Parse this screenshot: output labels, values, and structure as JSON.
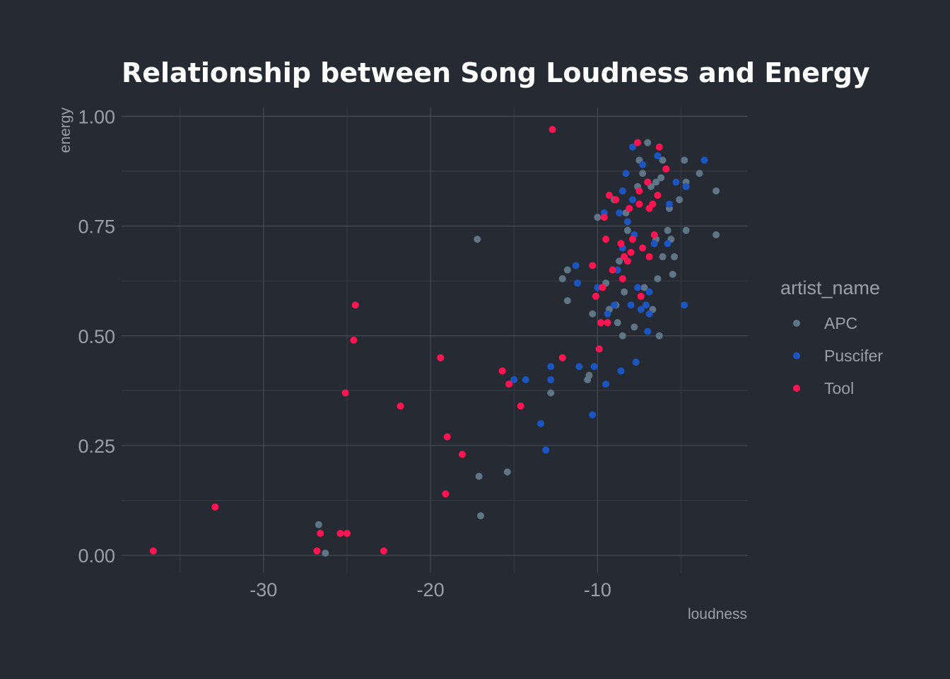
{
  "chart_data": {
    "type": "scatter",
    "title": "Relationship between Song Loudness and Energy",
    "xlabel": "loudness",
    "ylabel": "energy",
    "xlim": [
      -38.5,
      -1
    ],
    "ylim": [
      -0.04,
      1.02
    ],
    "x_ticks": [
      -30,
      -20,
      -10
    ],
    "x_tick_labels": [
      "-30",
      "-20",
      "-10"
    ],
    "y_ticks": [
      0,
      0.25,
      0.5,
      0.75,
      1
    ],
    "y_tick_labels": [
      "0.00",
      "0.25",
      "0.50",
      "0.75",
      "1.00"
    ],
    "grid": true,
    "legend": {
      "title": "artist_name",
      "placement": "right"
    },
    "series": [
      {
        "name": "APC",
        "color": "#5f7585",
        "points": [
          [
            -26.7,
            0.07
          ],
          [
            -26.3,
            0.005
          ],
          [
            -17.2,
            0.72
          ],
          [
            -17.1,
            0.18
          ],
          [
            -17.0,
            0.09
          ],
          [
            -15.4,
            0.19
          ],
          [
            -12.8,
            0.37
          ],
          [
            -12.1,
            0.63
          ],
          [
            -11.8,
            0.65
          ],
          [
            -11.8,
            0.58
          ],
          [
            -10.6,
            0.4
          ],
          [
            -10.5,
            0.41
          ],
          [
            -10.3,
            0.55
          ],
          [
            -10.0,
            0.77
          ],
          [
            -9.5,
            0.62
          ],
          [
            -9.3,
            0.56
          ],
          [
            -9.0,
            0.81
          ],
          [
            -8.9,
            0.57
          ],
          [
            -8.8,
            0.53
          ],
          [
            -8.7,
            0.67
          ],
          [
            -8.5,
            0.5
          ],
          [
            -8.4,
            0.6
          ],
          [
            -8.3,
            0.78
          ],
          [
            -8.2,
            0.74
          ],
          [
            -7.8,
            0.52
          ],
          [
            -7.6,
            0.84
          ],
          [
            -7.5,
            0.9
          ],
          [
            -7.3,
            0.87
          ],
          [
            -7.2,
            0.61
          ],
          [
            -7.0,
            0.94
          ],
          [
            -6.8,
            0.84
          ],
          [
            -6.7,
            0.56
          ],
          [
            -6.5,
            0.72
          ],
          [
            -6.5,
            0.85
          ],
          [
            -6.4,
            0.63
          ],
          [
            -6.3,
            0.5
          ],
          [
            -6.2,
            0.86
          ],
          [
            -6.1,
            0.68
          ],
          [
            -6.1,
            0.9
          ],
          [
            -5.8,
            0.74
          ],
          [
            -5.7,
            0.79
          ],
          [
            -5.6,
            0.72
          ],
          [
            -5.5,
            0.64
          ],
          [
            -5.4,
            0.68
          ],
          [
            -5.1,
            0.81
          ],
          [
            -4.8,
            0.9
          ],
          [
            -4.7,
            0.74
          ],
          [
            -4.7,
            0.85
          ],
          [
            -3.9,
            0.87
          ],
          [
            -2.9,
            0.83
          ],
          [
            -2.9,
            0.73
          ]
        ]
      },
      {
        "name": "Puscifer",
        "color": "#1d55c0",
        "points": [
          [
            -15.0,
            0.4
          ],
          [
            -14.3,
            0.4
          ],
          [
            -13.4,
            0.3
          ],
          [
            -13.1,
            0.24
          ],
          [
            -12.8,
            0.4
          ],
          [
            -12.8,
            0.43
          ],
          [
            -11.3,
            0.66
          ],
          [
            -11.2,
            0.62
          ],
          [
            -11.1,
            0.43
          ],
          [
            -10.3,
            0.32
          ],
          [
            -10.2,
            0.43
          ],
          [
            -10.0,
            0.61
          ],
          [
            -9.6,
            0.78
          ],
          [
            -9.5,
            0.39
          ],
          [
            -9.4,
            0.55
          ],
          [
            -9.0,
            0.57
          ],
          [
            -8.8,
            0.65
          ],
          [
            -8.7,
            0.78
          ],
          [
            -8.6,
            0.42
          ],
          [
            -8.5,
            0.7
          ],
          [
            -8.5,
            0.83
          ],
          [
            -8.3,
            0.87
          ],
          [
            -8.2,
            0.76
          ],
          [
            -8.0,
            0.57
          ],
          [
            -7.9,
            0.81
          ],
          [
            -7.9,
            0.93
          ],
          [
            -7.8,
            0.73
          ],
          [
            -7.7,
            0.44
          ],
          [
            -7.6,
            0.61
          ],
          [
            -7.4,
            0.56
          ],
          [
            -7.3,
            0.89
          ],
          [
            -7.1,
            0.57
          ],
          [
            -7.0,
            0.51
          ],
          [
            -6.9,
            0.55
          ],
          [
            -6.9,
            0.6
          ],
          [
            -6.6,
            0.71
          ],
          [
            -6.4,
            0.91
          ],
          [
            -5.8,
            0.71
          ],
          [
            -5.7,
            0.8
          ],
          [
            -5.3,
            0.85
          ],
          [
            -4.8,
            0.57
          ],
          [
            -4.7,
            0.84
          ],
          [
            -3.6,
            0.9
          ]
        ]
      },
      {
        "name": "Tool",
        "color": "#ff1452",
        "points": [
          [
            -36.6,
            0.01
          ],
          [
            -32.9,
            0.11
          ],
          [
            -26.8,
            0.01
          ],
          [
            -26.6,
            0.05
          ],
          [
            -25.4,
            0.05
          ],
          [
            -25.0,
            0.05
          ],
          [
            -25.1,
            0.37
          ],
          [
            -24.6,
            0.49
          ],
          [
            -24.5,
            0.57
          ],
          [
            -22.8,
            0.01
          ],
          [
            -21.8,
            0.34
          ],
          [
            -19.4,
            0.45
          ],
          [
            -19.1,
            0.14
          ],
          [
            -19.0,
            0.27
          ],
          [
            -18.1,
            0.23
          ],
          [
            -15.7,
            0.42
          ],
          [
            -15.3,
            0.39
          ],
          [
            -14.6,
            0.34
          ],
          [
            -12.7,
            0.97
          ],
          [
            -12.1,
            0.45
          ],
          [
            -10.3,
            0.66
          ],
          [
            -10.1,
            0.59
          ],
          [
            -9.9,
            0.47
          ],
          [
            -9.8,
            0.53
          ],
          [
            -9.7,
            0.61
          ],
          [
            -9.6,
            0.77
          ],
          [
            -9.5,
            0.72
          ],
          [
            -9.4,
            0.53
          ],
          [
            -9.3,
            0.82
          ],
          [
            -9.1,
            0.65
          ],
          [
            -8.9,
            0.81
          ],
          [
            -8.6,
            0.71
          ],
          [
            -8.5,
            0.63
          ],
          [
            -8.4,
            0.68
          ],
          [
            -8.2,
            0.67
          ],
          [
            -8.1,
            0.79
          ],
          [
            -8.0,
            0.69
          ],
          [
            -7.9,
            0.72
          ],
          [
            -7.6,
            0.94
          ],
          [
            -7.5,
            0.83
          ],
          [
            -7.5,
            0.8
          ],
          [
            -7.4,
            0.59
          ],
          [
            -7.3,
            0.7
          ],
          [
            -7.0,
            0.85
          ],
          [
            -6.9,
            0.79
          ],
          [
            -6.9,
            0.68
          ],
          [
            -6.7,
            0.8
          ],
          [
            -6.6,
            0.73
          ],
          [
            -6.4,
            0.82
          ],
          [
            -6.3,
            0.93
          ],
          [
            -5.9,
            0.88
          ]
        ]
      }
    ]
  }
}
